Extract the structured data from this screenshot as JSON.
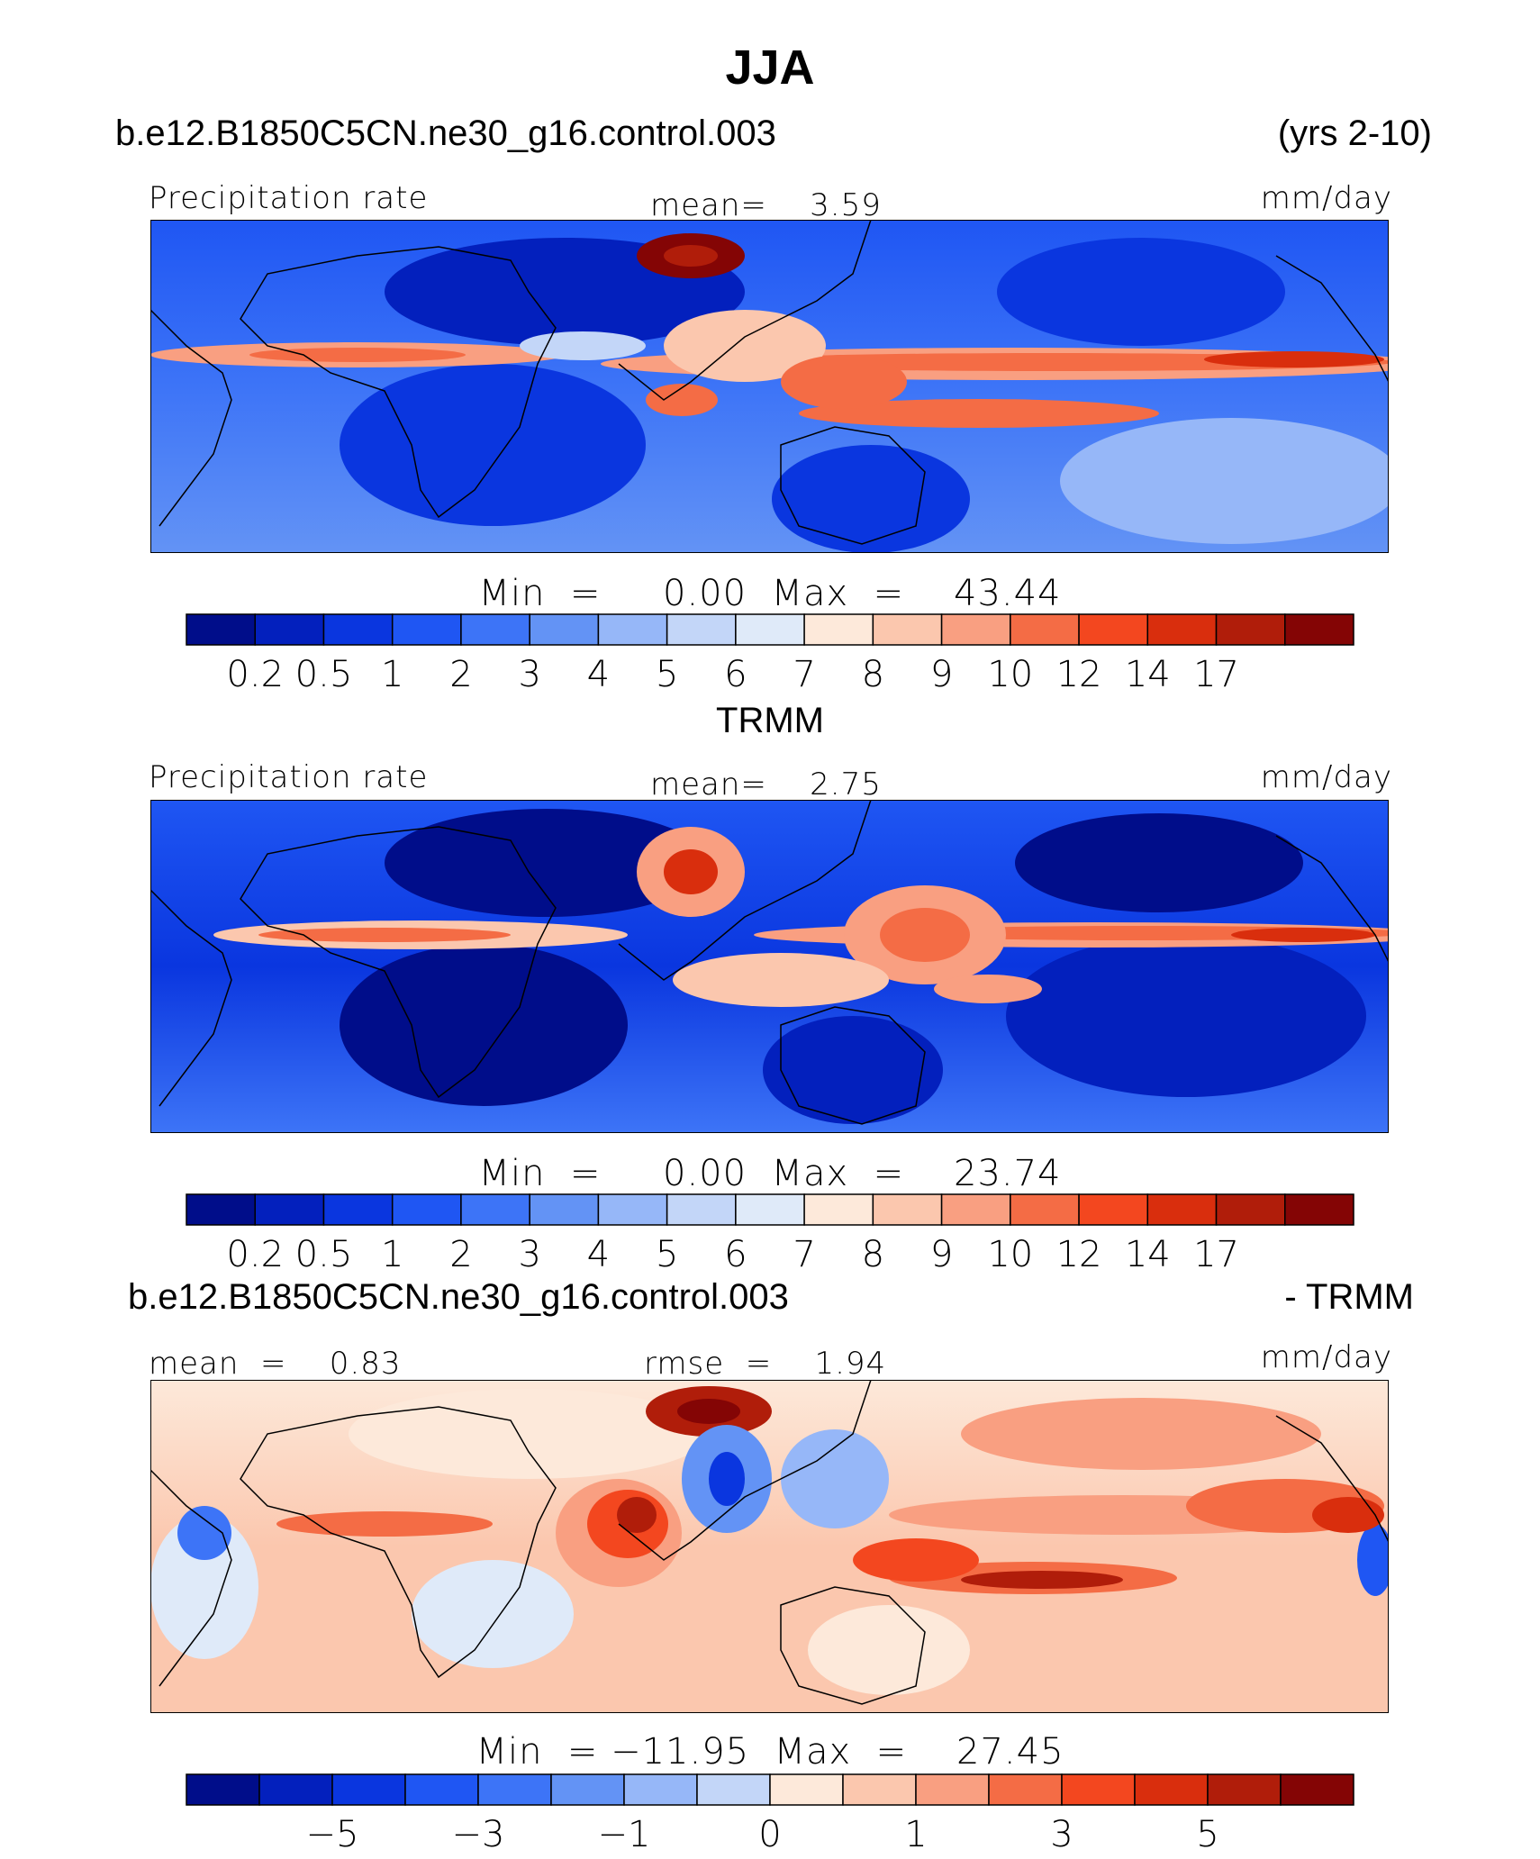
{
  "figure": {
    "season": "JJA",
    "case_name": "b.e12.B1850C5CN.ne30_g16.control.003",
    "years": "(yrs 2-10)",
    "obs_name": "TRMM",
    "diff_case_name": "b.e12.B1850C5CN.ne30_g16.control.003",
    "diff_suffix": "- TRMM"
  },
  "colors": {
    "scale": [
      "#000d8a",
      "#0320bd",
      "#0a36df",
      "#1f56f3",
      "#3d74f7",
      "#6393f5",
      "#96b7f8",
      "#c3d6f8",
      "#dfeaf9",
      "#fde9da",
      "#fbc7ae",
      "#f99f81",
      "#f46c45",
      "#f3471f",
      "#d92e0d",
      "#b01d0a",
      "#840505"
    ],
    "coast": "#000000"
  },
  "panels": [
    {
      "id": "model",
      "left_label": "Precipitation rate",
      "center_label": "mean=    3.59",
      "right_label": "mm/day",
      "minmax_label": "Min  =     0.00  Max  =    43.44",
      "colorbar_ticks": [
        "0.2",
        "0.5",
        "1",
        "2",
        "3",
        "4",
        "5",
        "6",
        "7",
        "8",
        "9",
        "10",
        "12",
        "14",
        "17"
      ]
    },
    {
      "id": "obs",
      "left_label": "Precipitation rate",
      "center_label": "mean=    2.75",
      "right_label": "mm/day",
      "minmax_label": "Min  =     0.00  Max  =    23.74",
      "colorbar_ticks": [
        "0.2",
        "0.5",
        "1",
        "2",
        "3",
        "4",
        "5",
        "6",
        "7",
        "8",
        "9",
        "10",
        "12",
        "14",
        "17"
      ]
    },
    {
      "id": "diff",
      "left_label": "mean  =    0.83",
      "center_label": "rmse  =    1.94",
      "right_label": "mm/day",
      "minmax_label": "Min  = −11.95  Max  =    27.45",
      "colorbar_ticks": [
        "−5",
        "−3",
        "−1",
        "0",
        "1",
        "3",
        "5"
      ]
    }
  ],
  "chart_data": [
    {
      "type": "heatmap",
      "title": "b.e12.B1850C5CN.ne30_g16.control.003",
      "subtitle": "(yrs 2-10)",
      "variable": "Precipitation rate",
      "units": "mm/day",
      "mean": 3.59,
      "min": 0.0,
      "max": 43.44,
      "contour_levels": [
        0.2,
        0.5,
        1,
        2,
        3,
        4,
        5,
        6,
        7,
        8,
        9,
        10,
        12,
        14,
        17
      ]
    },
    {
      "type": "heatmap",
      "title": "TRMM",
      "variable": "Precipitation rate",
      "units": "mm/day",
      "mean": 2.75,
      "min": 0.0,
      "max": 23.74,
      "contour_levels": [
        0.2,
        0.5,
        1,
        2,
        3,
        4,
        5,
        6,
        7,
        8,
        9,
        10,
        12,
        14,
        17
      ]
    },
    {
      "type": "heatmap",
      "title": "b.e12.B1850C5CN.ne30_g16.control.003 - TRMM",
      "units": "mm/day",
      "mean": 0.83,
      "rmse": 1.94,
      "min": -11.95,
      "max": 27.45,
      "contour_levels": [
        -5,
        -3,
        -1,
        0,
        1,
        3,
        5
      ]
    }
  ]
}
